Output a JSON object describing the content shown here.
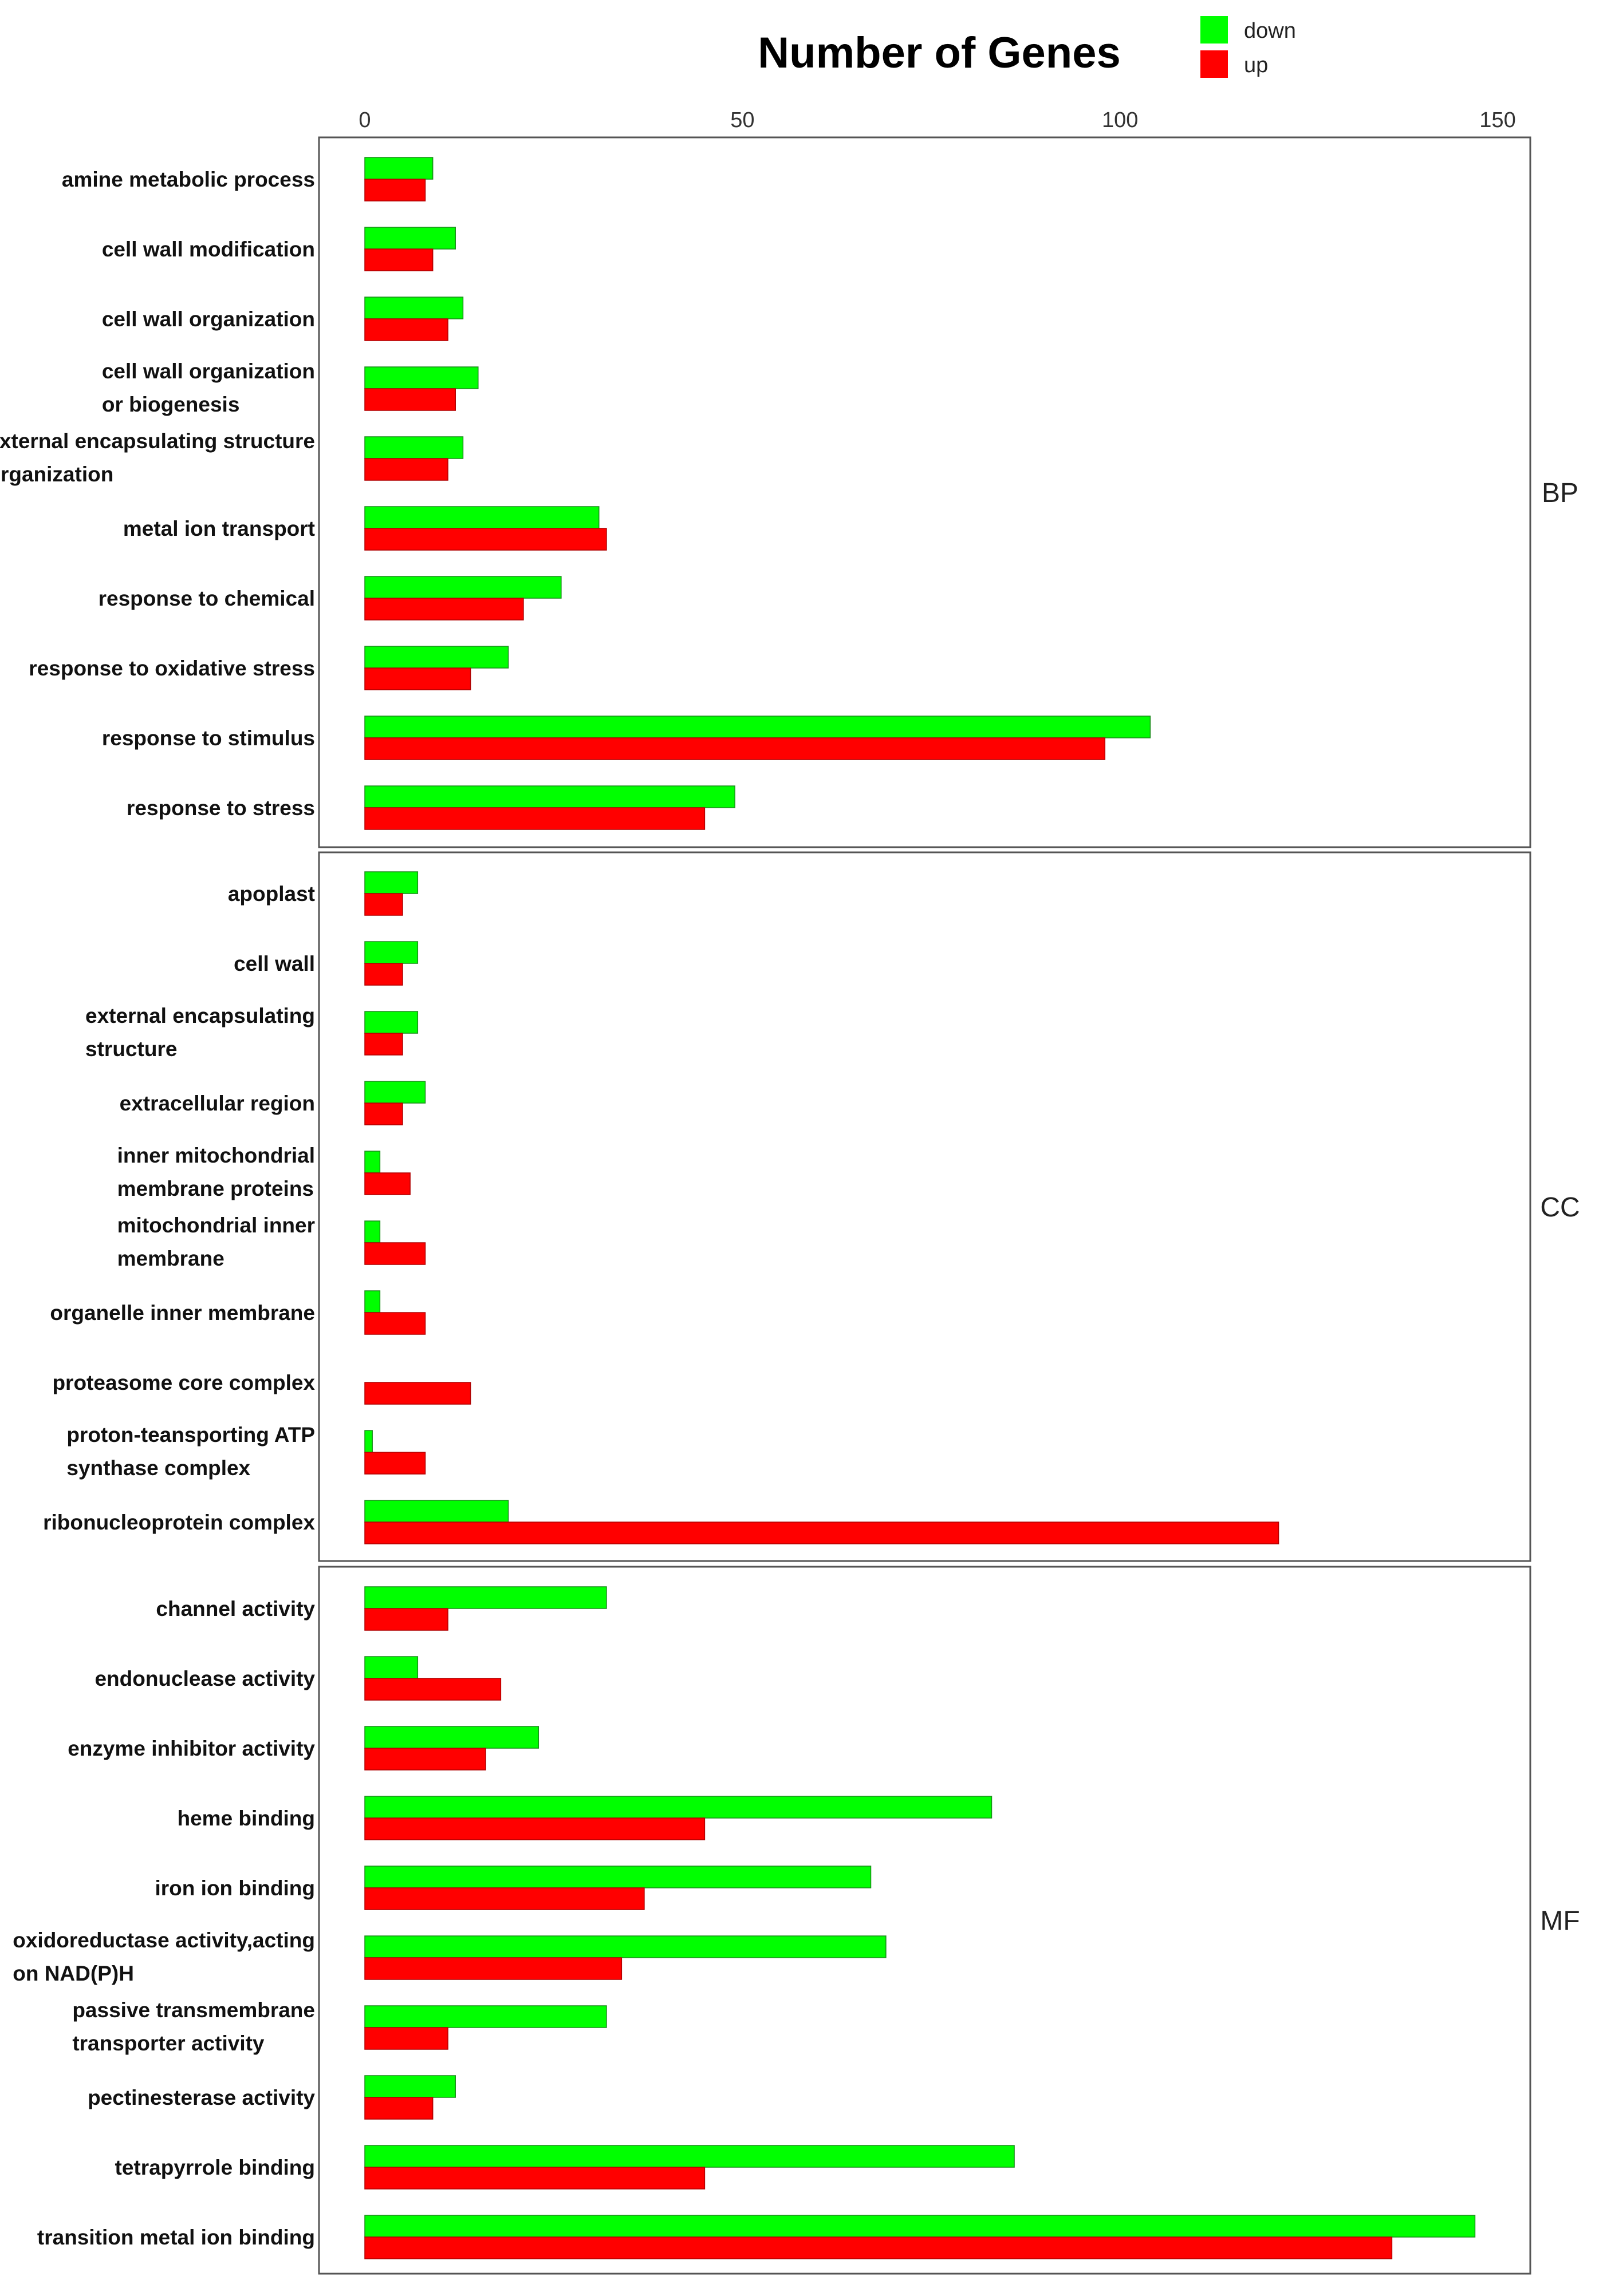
{
  "chart_data": {
    "type": "bar",
    "orientation": "horizontal",
    "title": "Number of Genes",
    "xlabel": "",
    "ylabel": "",
    "xlim": [
      0,
      150
    ],
    "xticks": [
      "0",
      "50",
      "100",
      "150"
    ],
    "tick_values": [
      0,
      50,
      100,
      150
    ],
    "legend": {
      "placement": "top-right",
      "entries": [
        {
          "name": "down",
          "color": "#00ff00"
        },
        {
          "name": "up",
          "color": "#ff0000"
        }
      ]
    },
    "panels": [
      {
        "name": "BP",
        "categories": [
          [
            "amine metabolic process"
          ],
          [
            "cell wall modification"
          ],
          [
            "cell wall organization"
          ],
          [
            "cell wall organization",
            "or biogenesis"
          ],
          [
            "external encapsulating structure",
            "organization"
          ],
          [
            "metal ion transport"
          ],
          [
            "response to chemical"
          ],
          [
            "response to oxidative stress"
          ],
          [
            "response to stimulus"
          ],
          [
            "response to stress"
          ]
        ],
        "series": [
          {
            "name": "down",
            "values": [
              9,
              12,
              13,
              15,
              13,
              31,
              26,
              19,
              104,
              49
            ]
          },
          {
            "name": "up",
            "values": [
              8,
              9,
              11,
              12,
              11,
              32,
              21,
              14,
              98,
              45
            ]
          }
        ]
      },
      {
        "name": "CC",
        "categories": [
          [
            "apoplast"
          ],
          [
            "cell wall"
          ],
          [
            "external encapsulating",
            "structure"
          ],
          [
            "extracellular region"
          ],
          [
            "inner mitochondrial",
            "membrane proteins"
          ],
          [
            "mitochondrial inner",
            "membrane"
          ],
          [
            "organelle inner membrane"
          ],
          [
            "proteasome core complex"
          ],
          [
            "proton-teansporting ATP",
            "synthase complex"
          ],
          [
            "ribonucleoprotein complex"
          ]
        ],
        "series": [
          {
            "name": "down",
            "values": [
              7,
              7,
              7,
              8,
              2,
              2,
              2,
              0,
              1,
              19
            ]
          },
          {
            "name": "up",
            "values": [
              5,
              5,
              5,
              5,
              6,
              8,
              8,
              14,
              8,
              121
            ]
          }
        ]
      },
      {
        "name": "MF",
        "categories": [
          [
            "channel activity"
          ],
          [
            "endonuclease activity"
          ],
          [
            "enzyme inhibitor activity"
          ],
          [
            "heme binding"
          ],
          [
            "iron ion binding"
          ],
          [
            "oxidoreductase activity,acting",
            "on NAD(P)H"
          ],
          [
            "passive transmembrane",
            "transporter activity"
          ],
          [
            "pectinesterase activity"
          ],
          [
            "tetrapyrrole binding"
          ],
          [
            "transition metal ion binding"
          ]
        ],
        "series": [
          {
            "name": "down",
            "values": [
              32,
              7,
              23,
              83,
              67,
              69,
              32,
              12,
              86,
              147
            ]
          },
          {
            "name": "up",
            "values": [
              11,
              18,
              16,
              45,
              37,
              34,
              11,
              9,
              45,
              136
            ]
          }
        ]
      }
    ]
  }
}
